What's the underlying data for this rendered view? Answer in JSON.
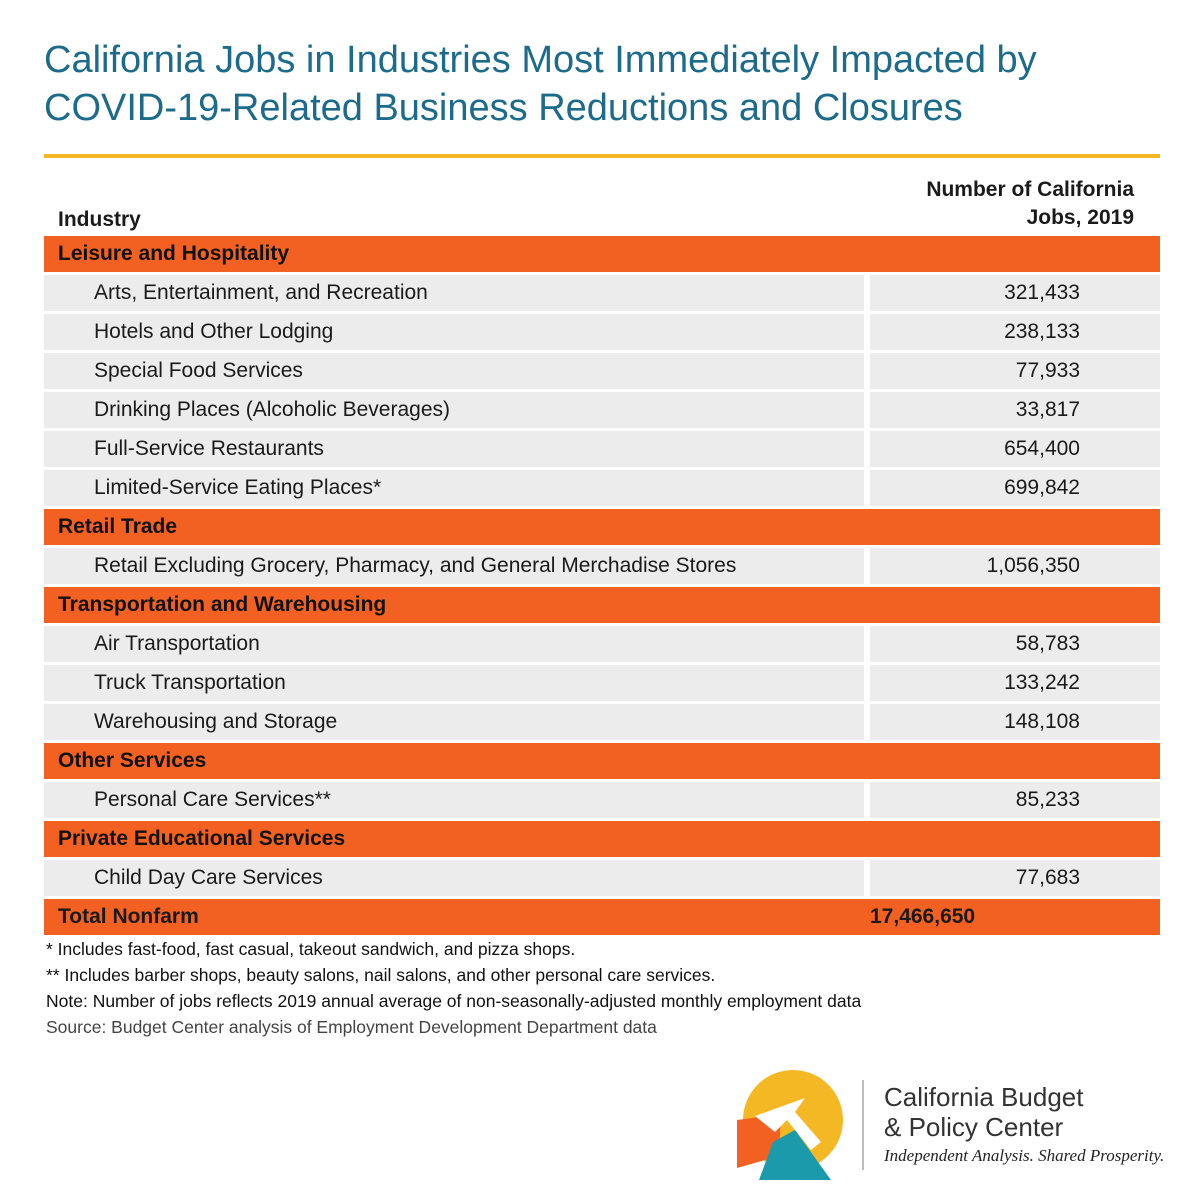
{
  "title": "California Jobs in Industries Most Immediately Impacted by COVID-19-Related Business Reductions and Closures",
  "chart_data": {
    "type": "table",
    "columns": [
      "Industry",
      "Number of California\nJobs, 2019"
    ],
    "groups": [
      {
        "category": "Leisure and Hospitality",
        "rows": [
          {
            "industry": "Arts, Entertainment, and Recreation",
            "jobs": "321,433"
          },
          {
            "industry": "Hotels and Other Lodging",
            "jobs": "238,133"
          },
          {
            "industry": "Special Food Services",
            "jobs": "77,933"
          },
          {
            "industry": "Drinking Places (Alcoholic Beverages)",
            "jobs": "33,817"
          },
          {
            "industry": "Full-Service Restaurants",
            "jobs": "654,400"
          },
          {
            "industry": "Limited-Service Eating Places*",
            "jobs": "699,842"
          }
        ]
      },
      {
        "category": "Retail Trade",
        "rows": [
          {
            "industry": "Retail Excluding Grocery, Pharmacy, and General Merchadise Stores",
            "jobs": "1,056,350"
          }
        ]
      },
      {
        "category": "Transportation and Warehousing",
        "rows": [
          {
            "industry": "Air Transportation",
            "jobs": "58,783"
          },
          {
            "industry": "Truck Transportation",
            "jobs": "133,242"
          },
          {
            "industry": "Warehousing and Storage",
            "jobs": "148,108"
          }
        ]
      },
      {
        "category": "Other Services",
        "rows": [
          {
            "industry": "Personal Care Services**",
            "jobs": "85,233"
          }
        ]
      },
      {
        "category": "Private Educational Services",
        "rows": [
          {
            "industry": "Child Day Care Services",
            "jobs": "77,683"
          }
        ]
      }
    ],
    "total": {
      "label": "Total Nonfarm",
      "jobs": "17,466,650"
    }
  },
  "notes": [
    "* Includes fast-food, fast casual, takeout sandwich, and pizza shops.",
    "** Includes barber shops, beauty salons, nail salons, and other personal care services.",
    "Note: Number of jobs reflects 2019 annual average of non-seasonally-adjusted monthly employment data",
    "Source: Budget Center analysis of Employment Development Department data"
  ],
  "branding": {
    "org_name": "California Budget\n& Policy Center",
    "tagline": "Independent Analysis. Shared Prosperity.",
    "colors": {
      "yellow": "#f4b824",
      "orange": "#f26122",
      "teal": "#1a9aaa",
      "title_blue": "#1d6b8a"
    }
  }
}
